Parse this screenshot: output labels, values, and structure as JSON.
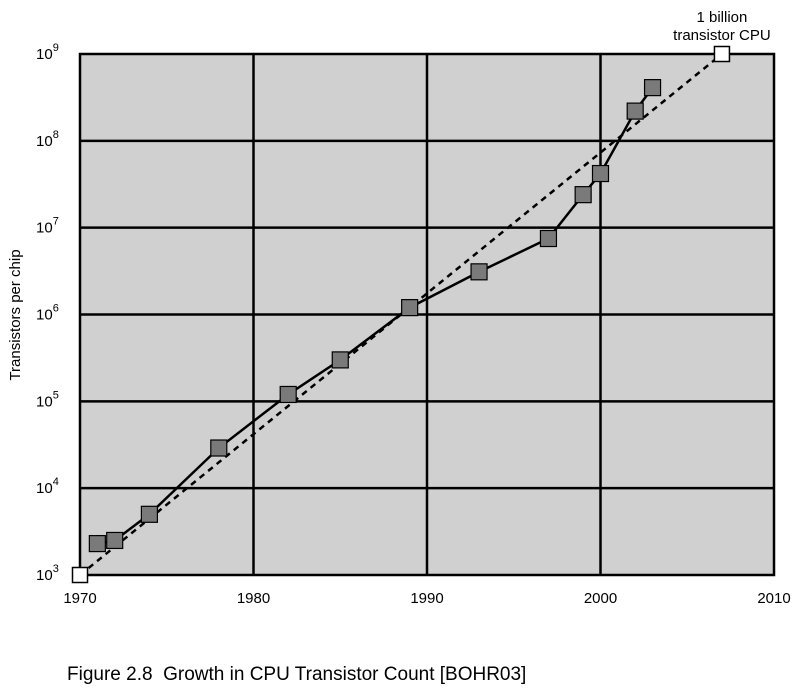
{
  "figure_caption": "Figure 2.8  Growth in CPU Transistor Count [BOHR03]",
  "chart_data": {
    "type": "line",
    "title": "",
    "xlabel": "",
    "ylabel": "Transistors per chip",
    "xlim": [
      1970,
      2010
    ],
    "ylim": [
      1000,
      1000000000
    ],
    "y_scale": "log",
    "grid": true,
    "x_ticks": [
      "1970",
      "1980",
      "1990",
      "2000",
      "2010"
    ],
    "y_ticks": [
      {
        "base": "10",
        "exp": "3"
      },
      {
        "base": "10",
        "exp": "4"
      },
      {
        "base": "10",
        "exp": "5"
      },
      {
        "base": "10",
        "exp": "6"
      },
      {
        "base": "10",
        "exp": "7"
      },
      {
        "base": "10",
        "exp": "8"
      },
      {
        "base": "10",
        "exp": "9"
      }
    ],
    "colors": {
      "plot_background": "#d0d0d0",
      "grid": "#000000",
      "marker_fill": "#7a7a7a",
      "trend_marker_fill": "#ffffff"
    },
    "series": [
      {
        "style": "solid-with-square-markers",
        "points": [
          {
            "x": 1971,
            "y": 2300
          },
          {
            "x": 1972,
            "y": 2500
          },
          {
            "x": 1974,
            "y": 5000
          },
          {
            "x": 1978,
            "y": 29000
          },
          {
            "x": 1982,
            "y": 120000
          },
          {
            "x": 1985,
            "y": 300000
          },
          {
            "x": 1989,
            "y": 1200000
          },
          {
            "x": 1993,
            "y": 3100000
          },
          {
            "x": 1997,
            "y": 7500000
          },
          {
            "x": 1999,
            "y": 24000000
          },
          {
            "x": 2000,
            "y": 42000000
          },
          {
            "x": 2002,
            "y": 220000000
          },
          {
            "x": 2003,
            "y": 410000000
          }
        ]
      },
      {
        "style": "dashed-trend",
        "points": [
          {
            "x": 1970,
            "y": 1000
          },
          {
            "x": 2007,
            "y": 1000000000
          }
        ]
      }
    ],
    "annotations": [
      {
        "text_lines": [
          "1 billion",
          "transistor CPU"
        ],
        "x": 2007,
        "y": 1000000000
      }
    ]
  }
}
